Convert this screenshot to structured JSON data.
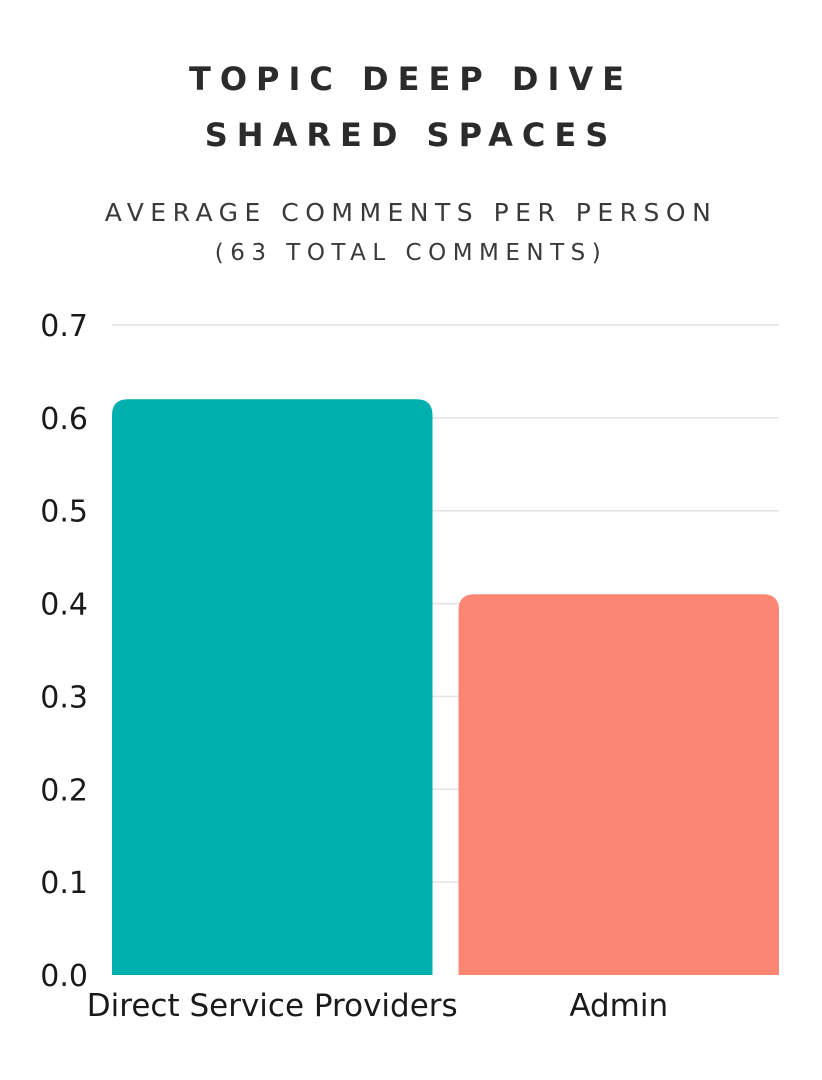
{
  "chart_data": {
    "type": "bar",
    "title": "TOPIC DEEP DIVE",
    "subtitle": "SHARED SPACES",
    "ylabel": "AVERAGE COMMENTS PER PERSON",
    "note": "(63 TOTAL COMMENTS)",
    "categories": [
      "Direct Service Providers",
      "Admin"
    ],
    "values": [
      0.62,
      0.41
    ],
    "colors": [
      "#00B0AE",
      "#FC8674"
    ],
    "ylim": [
      0,
      0.7
    ],
    "yticks": [
      "0.0",
      "0.1",
      "0.2",
      "0.3",
      "0.4",
      "0.5",
      "0.6",
      "0.7"
    ],
    "grid": true,
    "legend": "none"
  }
}
